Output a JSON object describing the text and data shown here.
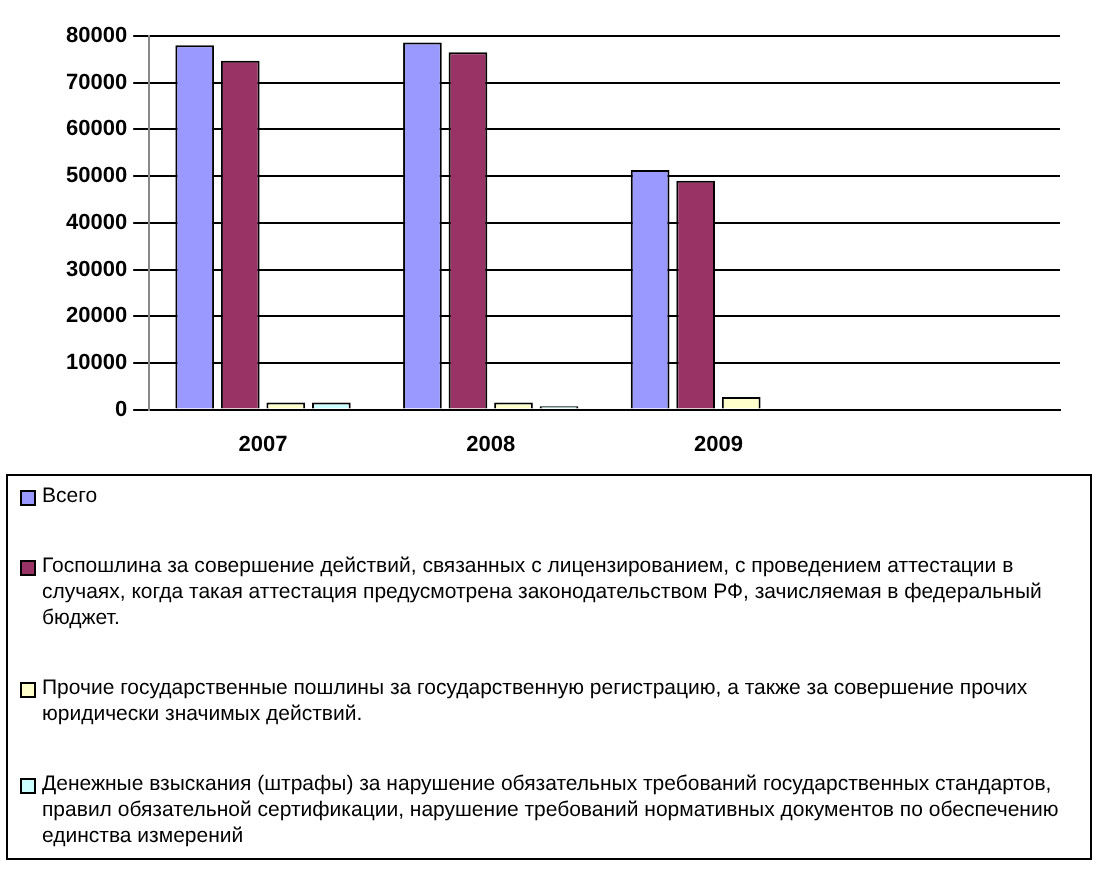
{
  "chart_data": {
    "type": "bar",
    "categories": [
      "2007",
      "2008",
      "2009",
      null
    ],
    "series": [
      {
        "name": "Всего",
        "color": "#9999ff",
        "values": [
          78000,
          78600,
          51300,
          null
        ]
      },
      {
        "name": "Госпошлина за совершение действий, связанных с лицензированием, с проведением аттестации в случаях, когда такая аттестация предусмотрена законодательством РФ, зачисляемая в федеральный бюджет.",
        "color": "#993366",
        "values": [
          74700,
          76500,
          49000,
          null
        ]
      },
      {
        "name": "Прочие государственные пошлины за государственную регистрацию, а также за совершение прочих юридически значимых действий.",
        "color": "#ffffcc",
        "values": [
          1500,
          1500,
          2700,
          null
        ]
      },
      {
        "name": "Денежные взыскания (штрафы) за нарушение обязательных требований государственных стандартов, правил обязательной сертификации, нарушение требований нормативных документов по обеспечению единства измерений",
        "color": "#ccffff",
        "values": [
          1500,
          700,
          0,
          null
        ]
      }
    ],
    "ylim": [
      0,
      80000
    ],
    "yticks": [
      0,
      10000,
      20000,
      30000,
      40000,
      50000,
      60000,
      70000,
      80000
    ],
    "grid": "y",
    "legend": "bottom"
  }
}
